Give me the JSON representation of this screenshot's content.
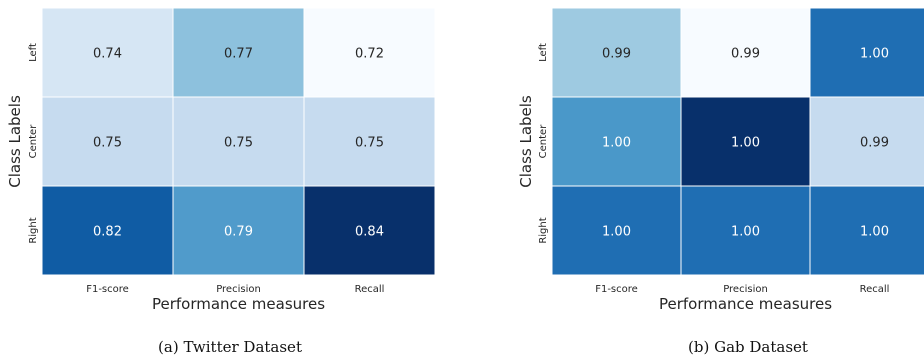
{
  "chart_data": [
    {
      "type": "heatmap",
      "caption": "(a) Twitter Dataset",
      "xlabel": "Performance measures",
      "ylabel": "Class Labels",
      "x_categories": [
        "F1-score",
        "Precision",
        "Recall"
      ],
      "y_categories": [
        "Left",
        "Center",
        "Right"
      ],
      "values": [
        [
          0.74,
          0.77,
          0.72
        ],
        [
          0.75,
          0.75,
          0.75
        ],
        [
          0.82,
          0.79,
          0.84
        ]
      ],
      "value_format": "2 decimals",
      "colormap": "Blues",
      "vmin": 0.72,
      "vmax": 0.84
    },
    {
      "type": "heatmap",
      "caption": "(b) Gab Dataset",
      "xlabel": "Performance measures",
      "ylabel": "Class Labels",
      "x_categories": [
        "F1-score",
        "Precision",
        "Recall"
      ],
      "y_categories": [
        "Left",
        "Center",
        "Right"
      ],
      "values": [
        [
          0.99,
          0.99,
          1.0
        ],
        [
          1.0,
          1.0,
          0.99
        ],
        [
          1.0,
          1.0,
          1.0
        ]
      ],
      "value_format": "2 decimals",
      "colormap": "Blues",
      "colors": [
        [
          "#9ecae1",
          "#f7fbff",
          "#1f6eb3"
        ],
        [
          "#4a98c9",
          "#08306b",
          "#c6dbef"
        ],
        [
          "#1f6eb3",
          "#1f6eb3",
          "#1f6eb3"
        ]
      ]
    }
  ]
}
